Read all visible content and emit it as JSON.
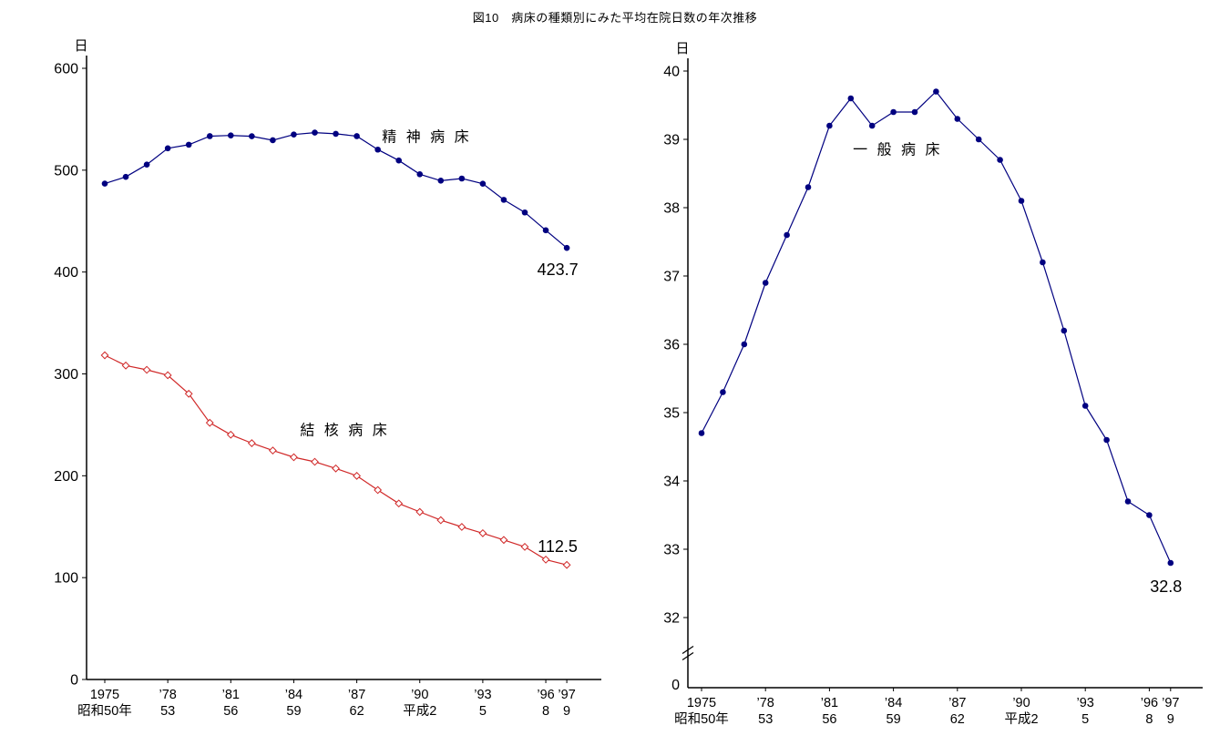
{
  "figure_title": "図10　病床の種類別にみた平均在院日数の年次推移",
  "chart_data": [
    {
      "id": "left-chart",
      "type": "line",
      "unit_label": "日",
      "ylim": [
        0,
        600
      ],
      "yticks": [
        600,
        500,
        400,
        300,
        200,
        100,
        0
      ],
      "grid": false,
      "x_years": [
        1975,
        1976,
        1977,
        1978,
        1979,
        1980,
        1981,
        1982,
        1983,
        1984,
        1985,
        1986,
        1987,
        1988,
        1989,
        1990,
        1991,
        1992,
        1993,
        1994,
        1995,
        1996,
        1997
      ],
      "x_ticks": {
        "years": [
          1975,
          1978,
          1981,
          1984,
          1987,
          1990,
          1993,
          1996,
          1997
        ],
        "top_labels": [
          "1975",
          "’78",
          "’81",
          "’84",
          "’87",
          "’90",
          "’93",
          "’96",
          "’97"
        ],
        "bottom_labels": [
          "昭和50年",
          "53",
          "56",
          "59",
          "62",
          "平成2",
          "5",
          "8",
          "9"
        ]
      },
      "series": [
        {
          "id": "psychiatric-beds",
          "name": "精 神 病 床",
          "color": "#000080",
          "marker": "circle",
          "values": [
            486.8,
            493.4,
            505.5,
            521.5,
            525.0,
            533.4,
            534.1,
            533.3,
            529.4,
            535.0,
            536.9,
            535.7,
            533.4,
            520.2,
            509.5,
            496.0,
            489.7,
            491.8,
            486.7,
            470.9,
            458.5,
            441.0,
            423.7
          ],
          "name_label": {
            "x_index": 13.2,
            "y_value": 528,
            "anchor": "start"
          },
          "end_label": {
            "text": "423.7",
            "dx": -10,
            "dy": 30
          }
        },
        {
          "id": "tuberculosis-beds",
          "name": "結 核 病 床",
          "color": "#d02828",
          "marker": "diamond",
          "values": [
            318.3,
            308.2,
            304.0,
            298.7,
            280.5,
            252.0,
            240.3,
            232.0,
            224.8,
            218.2,
            213.7,
            207.2,
            199.9,
            186.0,
            172.8,
            164.5,
            156.4,
            149.8,
            143.6,
            137.0,
            130.2,
            117.7,
            112.5
          ],
          "name_label": {
            "x_index": 9.3,
            "y_value": 240,
            "anchor": "start"
          },
          "end_label": {
            "text": "112.5",
            "dx": -10,
            "dy": -14
          }
        }
      ]
    },
    {
      "id": "right-chart",
      "type": "line",
      "unit_label": "日",
      "ylim": [
        32,
        40
      ],
      "yticks": [
        40,
        39,
        38,
        37,
        36,
        35,
        34,
        33,
        32
      ],
      "axis_break": true,
      "zero_label": "0",
      "grid": false,
      "x_years": [
        1975,
        1976,
        1977,
        1978,
        1979,
        1980,
        1981,
        1982,
        1983,
        1984,
        1985,
        1986,
        1987,
        1988,
        1989,
        1990,
        1991,
        1992,
        1993,
        1994,
        1995,
        1996,
        1997
      ],
      "x_ticks": {
        "years": [
          1975,
          1978,
          1981,
          1984,
          1987,
          1990,
          1993,
          1996,
          1997
        ],
        "top_labels": [
          "1975",
          "’78",
          "’81",
          "’84",
          "’87",
          "’90",
          "’93",
          "’96",
          "’97"
        ],
        "bottom_labels": [
          "昭和50年",
          "53",
          "56",
          "59",
          "62",
          "平成2",
          "5",
          "8",
          "9"
        ]
      },
      "series": [
        {
          "id": "general-beds",
          "name": "一 般 病 床",
          "color": "#000080",
          "marker": "circle",
          "values": [
            34.7,
            35.3,
            36.0,
            36.9,
            37.6,
            38.3,
            39.2,
            39.6,
            39.2,
            39.4,
            39.4,
            39.7,
            39.3,
            39.0,
            38.7,
            38.1,
            37.2,
            36.2,
            35.1,
            34.6,
            33.7,
            33.5,
            32.8
          ],
          "name_label": {
            "x_index": 7.1,
            "y_value": 38.78,
            "anchor": "start"
          },
          "end_label": {
            "text": "32.8",
            "dx": -5,
            "dy": 32
          }
        }
      ]
    }
  ]
}
